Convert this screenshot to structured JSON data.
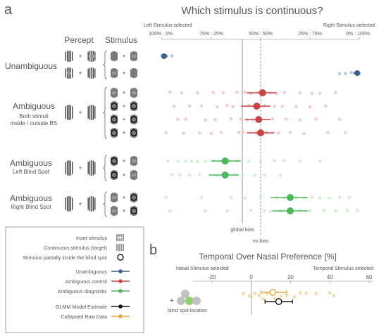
{
  "panel_labels": {
    "a": "a",
    "b": "b"
  },
  "panel_a": {
    "title": "Which stimulus is continuous?",
    "left_selected": "Left Stimulus selected",
    "right_selected": "Right Stimulus selected",
    "col_percept": "Percept",
    "col_stimulus": "Stimulus",
    "ticks": [
      "100% : 0%",
      "75% : 25%",
      "50% : 50%",
      "25% : 75%",
      "0% : 100%"
    ],
    "groups": [
      {
        "title": "Unambiguous",
        "subtitle": ""
      },
      {
        "title": "Ambiguous",
        "subtitle": "Both stimuli\ninside / outside BS"
      },
      {
        "title": "Ambiguous",
        "subtitle": "Left Blind Spot"
      },
      {
        "title": "Ambiguous",
        "subtitle": "Right Blind Spot"
      }
    ],
    "plus": "+",
    "global_bias": "global bias",
    "no_bias": "no bias"
  },
  "legend": {
    "items": [
      {
        "kind": "icon",
        "label": "Inset stimulus"
      },
      {
        "kind": "icon",
        "label": "Continuous stimulus (target)"
      },
      {
        "kind": "icon",
        "label": "Stimulus partially inside the blind spot"
      },
      {
        "kind": "line",
        "label": "Unambiguous",
        "color": "#3a5f8f"
      },
      {
        "kind": "line",
        "label": "Ambiguous control",
        "color": "#c94545"
      },
      {
        "kind": "line",
        "label": "Ambiguous diagnostic",
        "color": "#4bb85b"
      },
      {
        "kind": "line",
        "label": "GLMM Model Estimate",
        "color": "#111111"
      },
      {
        "kind": "line",
        "label": "Collapsed Raw Data",
        "color": "#e8a53a"
      }
    ]
  },
  "panel_b": {
    "title": "Temporal Over Nasal Preference [%]",
    "left_selected": "Nasal Stimulus selected",
    "right_selected": "Temporal Stimulus selected",
    "ticks": [
      "-20",
      "0",
      "20",
      "40",
      "60"
    ],
    "blind_spot_label": "blind spot location",
    "plus": "+"
  },
  "chart_data": [
    {
      "type": "scatter",
      "title": "Which stimulus is continuous?",
      "xlabel": "",
      "x_scale": "proportion right stimulus selected (%)",
      "xlim": [
        0,
        100
      ],
      "reference_lines": [
        {
          "label": "global bias",
          "x": 50,
          "style": "solid"
        },
        {
          "label": "no bias",
          "x": 57,
          "style": "dashed"
        }
      ],
      "series": [
        {
          "color": "#3a5f8f",
          "rows": [
            {
              "mean": 1,
              "ci": [
                0,
                3
              ],
              "raw": [
                0,
                1,
                2,
                5
              ]
            },
            {
              "mean": 99,
              "ci": [
                97,
                100
              ],
              "raw": [
                90,
                93,
                96,
                98,
                100
              ]
            }
          ]
        },
        {
          "color": "#c94545",
          "rows": [
            {
              "mean": 51,
              "ci": [
                43,
                58
              ],
              "raw": [
                4,
                10,
                18,
                26,
                31,
                38,
                42,
                45,
                49,
                55,
                58,
                62,
                70,
                76,
                80,
                88
              ]
            },
            {
              "mean": 48,
              "ci": [
                40,
                55
              ],
              "raw": [
                6,
                14,
                20,
                28,
                33,
                36,
                44,
                47,
                52,
                57,
                61,
                68,
                75,
                83
              ]
            },
            {
              "mean": 49,
              "ci": [
                42,
                55
              ],
              "raw": [
                8,
                12,
                22,
                27,
                35,
                40,
                43,
                46,
                50,
                56,
                63,
                70,
                78,
                90
              ]
            },
            {
              "mean": 50,
              "ci": [
                43,
                57
              ],
              "raw": [
                2,
                11,
                19,
                25,
                30,
                39,
                41,
                48,
                53,
                59,
                65,
                72,
                84,
                93
              ]
            }
          ]
        },
        {
          "color": "#4bb85b",
          "rows": [
            {
              "mean": 32,
              "ci": [
                25,
                40
              ],
              "raw": [
                3,
                8,
                12,
                15,
                18,
                22,
                26,
                30,
                34,
                38,
                44,
                50,
                57,
                62,
                70,
                80
              ]
            },
            {
              "mean": 32,
              "ci": [
                24,
                39
              ],
              "raw": [
                5,
                9,
                14,
                19,
                24,
                28,
                33,
                37,
                41,
                47,
                52,
                60
              ]
            }
          ]
        },
        {
          "color": "#4bb85b",
          "rows": [
            {
              "mean": 65,
              "ci": [
                55,
                74
              ],
              "raw": [
                2,
                20,
                35,
                42,
                50,
                58,
                62,
                68,
                72,
                76,
                80,
                85,
                90,
                95
              ]
            },
            {
              "mean": 65,
              "ci": [
                56,
                74
              ],
              "raw": [
                4,
                22,
                33,
                45,
                52,
                55,
                60,
                66,
                70,
                75,
                82,
                88,
                94,
                99
              ]
            }
          ]
        }
      ]
    },
    {
      "type": "scatter",
      "title": "Temporal Over Nasal Preference [%]",
      "xlabel": "",
      "xlim": [
        -35,
        65
      ],
      "x_ticks": [
        -20,
        0,
        20,
        40,
        60
      ],
      "series": [
        {
          "color": "#e8a53a",
          "mean": 11,
          "ci": [
            5,
            18
          ],
          "raw": [
            -4,
            -1,
            0,
            2,
            4,
            6,
            8,
            10,
            12,
            15,
            18,
            22,
            25,
            28,
            33,
            40,
            42
          ]
        },
        {
          "color": "#111111",
          "mean": 14,
          "ci": [
            7,
            21
          ]
        }
      ]
    }
  ]
}
